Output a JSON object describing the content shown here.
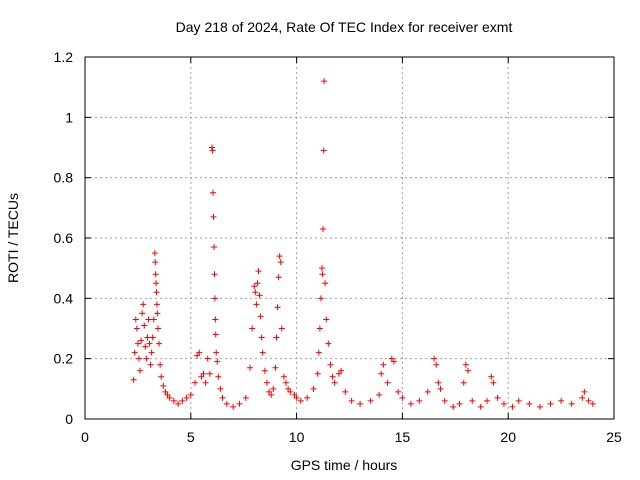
{
  "chart_data": {
    "type": "scatter",
    "title": "Day 218 of 2024, Rate Of TEC Index for receiver exmt",
    "xlabel": "GPS time / hours",
    "ylabel": "ROTI / TECUs",
    "xlim": [
      0,
      25
    ],
    "ylim": [
      0,
      1.2
    ],
    "x_ticks": [
      "0",
      "5",
      "10",
      "15",
      "20",
      "25"
    ],
    "y_ticks": [
      "0",
      "0.2",
      "0.4",
      "0.6",
      "0.8",
      "1",
      "1.2"
    ],
    "grid": true,
    "marker": "plus",
    "color": "#ff0000",
    "series": [
      {
        "points": [
          [
            2.3,
            0.13
          ],
          [
            2.35,
            0.22
          ],
          [
            2.4,
            0.33
          ],
          [
            2.45,
            0.3
          ],
          [
            2.5,
            0.25
          ],
          [
            2.55,
            0.2
          ],
          [
            2.6,
            0.16
          ],
          [
            2.65,
            0.26
          ],
          [
            2.7,
            0.35
          ],
          [
            2.75,
            0.38
          ],
          [
            2.8,
            0.31
          ],
          [
            2.85,
            0.24
          ],
          [
            2.9,
            0.2
          ],
          [
            2.95,
            0.27
          ],
          [
            3.0,
            0.33
          ],
          [
            3.05,
            0.25
          ],
          [
            3.1,
            0.18
          ],
          [
            3.15,
            0.22
          ],
          [
            3.2,
            0.27
          ],
          [
            3.25,
            0.33
          ],
          [
            3.3,
            0.55
          ],
          [
            3.32,
            0.52
          ],
          [
            3.34,
            0.48
          ],
          [
            3.36,
            0.45
          ],
          [
            3.38,
            0.42
          ],
          [
            3.4,
            0.38
          ],
          [
            3.42,
            0.35
          ],
          [
            3.45,
            0.3
          ],
          [
            3.5,
            0.25
          ],
          [
            3.55,
            0.18
          ],
          [
            3.6,
            0.14
          ],
          [
            3.7,
            0.11
          ],
          [
            3.8,
            0.09
          ],
          [
            3.9,
            0.08
          ],
          [
            4.0,
            0.07
          ],
          [
            4.2,
            0.06
          ],
          [
            4.4,
            0.05
          ],
          [
            4.6,
            0.06
          ],
          [
            4.8,
            0.07
          ],
          [
            5.0,
            0.08
          ],
          [
            5.2,
            0.12
          ],
          [
            5.3,
            0.21
          ],
          [
            5.4,
            0.22
          ],
          [
            5.5,
            0.14
          ],
          [
            5.6,
            0.15
          ],
          [
            5.7,
            0.12
          ],
          [
            5.8,
            0.2
          ],
          [
            5.9,
            0.15
          ],
          [
            6.0,
            0.9
          ],
          [
            6.03,
            0.89
          ],
          [
            6.05,
            0.75
          ],
          [
            6.07,
            0.67
          ],
          [
            6.1,
            0.57
          ],
          [
            6.12,
            0.48
          ],
          [
            6.14,
            0.4
          ],
          [
            6.16,
            0.33
          ],
          [
            6.18,
            0.28
          ],
          [
            6.2,
            0.22
          ],
          [
            6.25,
            0.19
          ],
          [
            6.3,
            0.14
          ],
          [
            6.4,
            0.1
          ],
          [
            6.5,
            0.07
          ],
          [
            6.7,
            0.05
          ],
          [
            7.0,
            0.04
          ],
          [
            7.3,
            0.05
          ],
          [
            7.6,
            0.07
          ],
          [
            7.8,
            0.17
          ],
          [
            7.9,
            0.3
          ],
          [
            8.0,
            0.44
          ],
          [
            8.05,
            0.42
          ],
          [
            8.1,
            0.38
          ],
          [
            8.15,
            0.45
          ],
          [
            8.2,
            0.49
          ],
          [
            8.25,
            0.41
          ],
          [
            8.3,
            0.34
          ],
          [
            8.35,
            0.27
          ],
          [
            8.4,
            0.22
          ],
          [
            8.5,
            0.16
          ],
          [
            8.6,
            0.12
          ],
          [
            8.7,
            0.09
          ],
          [
            8.8,
            0.08
          ],
          [
            8.9,
            0.1
          ],
          [
            9.0,
            0.17
          ],
          [
            9.05,
            0.27
          ],
          [
            9.1,
            0.37
          ],
          [
            9.15,
            0.47
          ],
          [
            9.2,
            0.54
          ],
          [
            9.25,
            0.52
          ],
          [
            9.3,
            0.3
          ],
          [
            9.4,
            0.14
          ],
          [
            9.5,
            0.12
          ],
          [
            9.6,
            0.1
          ],
          [
            9.7,
            0.09
          ],
          [
            9.9,
            0.08
          ],
          [
            10.0,
            0.07
          ],
          [
            10.2,
            0.06
          ],
          [
            10.5,
            0.07
          ],
          [
            10.8,
            0.1
          ],
          [
            11.0,
            0.15
          ],
          [
            11.05,
            0.22
          ],
          [
            11.1,
            0.3
          ],
          [
            11.15,
            0.4
          ],
          [
            11.2,
            0.5
          ],
          [
            11.22,
            0.48
          ],
          [
            11.25,
            0.63
          ],
          [
            11.28,
            0.89
          ],
          [
            11.3,
            1.12
          ],
          [
            11.35,
            0.45
          ],
          [
            11.4,
            0.33
          ],
          [
            11.5,
            0.25
          ],
          [
            11.6,
            0.18
          ],
          [
            11.7,
            0.14
          ],
          [
            11.8,
            0.12
          ],
          [
            12.0,
            0.15
          ],
          [
            12.1,
            0.16
          ],
          [
            12.3,
            0.09
          ],
          [
            12.6,
            0.06
          ],
          [
            13.0,
            0.05
          ],
          [
            13.5,
            0.06
          ],
          [
            13.9,
            0.08
          ],
          [
            14.0,
            0.15
          ],
          [
            14.1,
            0.18
          ],
          [
            14.3,
            0.12
          ],
          [
            14.5,
            0.2
          ],
          [
            14.6,
            0.19
          ],
          [
            14.8,
            0.09
          ],
          [
            15.0,
            0.07
          ],
          [
            15.4,
            0.05
          ],
          [
            15.8,
            0.06
          ],
          [
            16.2,
            0.09
          ],
          [
            16.5,
            0.2
          ],
          [
            16.6,
            0.18
          ],
          [
            16.7,
            0.12
          ],
          [
            16.8,
            0.1
          ],
          [
            17.0,
            0.06
          ],
          [
            17.4,
            0.04
          ],
          [
            17.7,
            0.05
          ],
          [
            17.9,
            0.12
          ],
          [
            18.0,
            0.18
          ],
          [
            18.1,
            0.16
          ],
          [
            18.3,
            0.06
          ],
          [
            18.7,
            0.04
          ],
          [
            19.0,
            0.06
          ],
          [
            19.2,
            0.14
          ],
          [
            19.3,
            0.12
          ],
          [
            19.5,
            0.07
          ],
          [
            19.8,
            0.05
          ],
          [
            20.2,
            0.04
          ],
          [
            20.5,
            0.06
          ],
          [
            21.0,
            0.05
          ],
          [
            21.5,
            0.04
          ],
          [
            22.0,
            0.05
          ],
          [
            22.5,
            0.06
          ],
          [
            23.0,
            0.05
          ],
          [
            23.5,
            0.07
          ],
          [
            23.6,
            0.09
          ],
          [
            23.8,
            0.06
          ],
          [
            24.0,
            0.05
          ]
        ]
      }
    ]
  }
}
